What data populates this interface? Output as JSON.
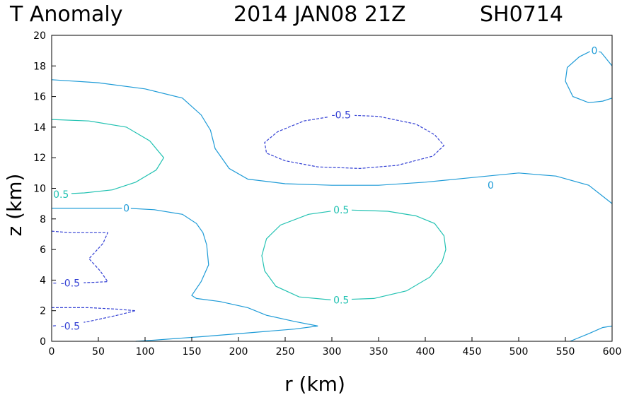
{
  "chart_data": {
    "type": "contour",
    "title": "T Anomaly",
    "subtitle": "2014 JAN08 21Z",
    "storm_id": "SH0714",
    "xlabel": "r (km)",
    "ylabel": "z (km)",
    "xlim": [
      0,
      600
    ],
    "ylim": [
      0,
      20
    ],
    "x_ticks": [
      "0",
      "50",
      "100",
      "150",
      "200",
      "250",
      "300",
      "350",
      "400",
      "450",
      "500",
      "550",
      "600"
    ],
    "y_ticks": [
      "0",
      "2",
      "4",
      "6",
      "8",
      "10",
      "12",
      "14",
      "16",
      "18",
      "20"
    ],
    "colors": {
      "zero": "#1e9bd7",
      "positive": "#22c2b2",
      "negative": "#3340d4"
    },
    "contours": [
      {
        "level": 0,
        "color_key": "zero",
        "dashed": false,
        "points": [
          [
            0,
            17.1
          ],
          [
            50,
            16.9
          ],
          [
            100,
            16.5
          ],
          [
            140,
            15.9
          ],
          [
            160,
            14.8
          ],
          [
            170,
            13.8
          ],
          [
            175,
            12.6
          ],
          [
            190,
            11.3
          ],
          [
            210,
            10.6
          ],
          [
            250,
            10.3
          ],
          [
            300,
            10.2
          ],
          [
            350,
            10.2
          ],
          [
            400,
            10.4
          ],
          [
            450,
            10.7
          ],
          [
            500,
            11.0
          ],
          [
            540,
            10.8
          ],
          [
            575,
            10.2
          ],
          [
            600,
            9.0
          ]
        ]
      },
      {
        "level": 0,
        "color_key": "zero",
        "dashed": false,
        "points": [
          [
            0,
            8.7
          ],
          [
            50,
            8.7
          ],
          [
            80,
            8.7
          ],
          [
            110,
            8.6
          ],
          [
            140,
            8.3
          ],
          [
            155,
            7.7
          ],
          [
            162,
            7.1
          ],
          [
            166,
            6.3
          ],
          [
            168,
            5.0
          ],
          [
            160,
            3.9
          ],
          [
            150,
            3.0
          ],
          [
            155,
            2.8
          ],
          [
            180,
            2.6
          ],
          [
            210,
            2.2
          ],
          [
            230,
            1.7
          ],
          [
            260,
            1.3
          ],
          [
            285,
            1.0
          ],
          [
            260,
            0.8
          ],
          [
            210,
            0.55
          ],
          [
            160,
            0.3
          ],
          [
            110,
            0.08
          ],
          [
            90,
            0.0
          ]
        ]
      },
      {
        "level": 0,
        "color_key": "zero",
        "dashed": false,
        "points": [
          [
            555,
            0.0
          ],
          [
            575,
            0.5
          ],
          [
            590,
            0.9
          ],
          [
            600,
            1.0
          ]
        ]
      },
      {
        "level": 0,
        "color_key": "zero",
        "dashed": false,
        "points": [
          [
            600,
            18.0
          ],
          [
            588,
            18.9
          ],
          [
            578,
            19.0
          ],
          [
            565,
            18.6
          ],
          [
            552,
            17.9
          ],
          [
            550,
            17.0
          ],
          [
            558,
            16.0
          ],
          [
            575,
            15.6
          ],
          [
            590,
            15.7
          ],
          [
            600,
            15.9
          ]
        ]
      },
      {
        "level": 0.5,
        "color_key": "positive",
        "dashed": false,
        "points": [
          [
            0,
            14.5
          ],
          [
            40,
            14.4
          ],
          [
            80,
            14.0
          ],
          [
            105,
            13.1
          ],
          [
            120,
            12.0
          ],
          [
            112,
            11.2
          ],
          [
            90,
            10.4
          ],
          [
            65,
            9.9
          ],
          [
            35,
            9.7
          ],
          [
            0,
            9.6
          ]
        ]
      },
      {
        "level": 0.5,
        "color_key": "positive",
        "dashed": false,
        "points": [
          [
            310,
            8.6
          ],
          [
            360,
            8.5
          ],
          [
            390,
            8.2
          ],
          [
            410,
            7.7
          ],
          [
            420,
            6.9
          ],
          [
            422,
            6.0
          ],
          [
            418,
            5.2
          ],
          [
            405,
            4.2
          ],
          [
            380,
            3.3
          ],
          [
            345,
            2.8
          ],
          [
            300,
            2.7
          ],
          [
            265,
            2.9
          ],
          [
            240,
            3.6
          ],
          [
            228,
            4.6
          ],
          [
            225,
            5.6
          ],
          [
            230,
            6.7
          ],
          [
            245,
            7.6
          ],
          [
            275,
            8.3
          ],
          [
            310,
            8.6
          ]
        ]
      },
      {
        "level": -0.5,
        "color_key": "negative",
        "dashed": true,
        "points": [
          [
            310,
            14.8
          ],
          [
            350,
            14.7
          ],
          [
            390,
            14.2
          ],
          [
            410,
            13.5
          ],
          [
            420,
            12.8
          ],
          [
            408,
            12.1
          ],
          [
            370,
            11.5
          ],
          [
            330,
            11.3
          ],
          [
            285,
            11.4
          ],
          [
            250,
            11.8
          ],
          [
            230,
            12.3
          ],
          [
            228,
            13.0
          ],
          [
            242,
            13.7
          ],
          [
            270,
            14.4
          ],
          [
            310,
            14.8
          ]
        ]
      },
      {
        "level": -0.5,
        "color_key": "negative",
        "dashed": true,
        "points": [
          [
            0,
            7.2
          ],
          [
            20,
            7.1
          ],
          [
            40,
            7.1
          ],
          [
            60,
            7.1
          ],
          [
            55,
            6.4
          ],
          [
            40,
            5.4
          ],
          [
            52,
            4.6
          ],
          [
            60,
            3.9
          ],
          [
            45,
            3.85
          ],
          [
            20,
            3.8
          ],
          [
            0,
            3.8
          ]
        ]
      },
      {
        "level": -0.5,
        "color_key": "negative",
        "dashed": true,
        "points": [
          [
            0,
            2.2
          ],
          [
            40,
            2.2
          ],
          [
            70,
            2.1
          ],
          [
            90,
            2.0
          ],
          [
            70,
            1.7
          ],
          [
            40,
            1.3
          ],
          [
            20,
            1.1
          ],
          [
            0,
            1.0
          ]
        ]
      }
    ],
    "contour_labels": [
      {
        "text": "0",
        "x": 470,
        "y": 10.2,
        "color_key": "zero"
      },
      {
        "text": "0",
        "x": 80,
        "y": 8.7,
        "color_key": "zero"
      },
      {
        "text": "0",
        "x": 581,
        "y": 19.0,
        "color_key": "zero"
      },
      {
        "text": "0.5",
        "x": 10,
        "y": 9.6,
        "color_key": "positive"
      },
      {
        "text": "0.5",
        "x": 310,
        "y": 8.6,
        "color_key": "positive"
      },
      {
        "text": "0.5",
        "x": 310,
        "y": 2.7,
        "color_key": "positive"
      },
      {
        "text": "-0.5",
        "x": 310,
        "y": 14.8,
        "color_key": "negative"
      },
      {
        "text": "-0.5",
        "x": 20,
        "y": 3.8,
        "color_key": "negative"
      },
      {
        "text": "-0.5",
        "x": 20,
        "y": 1.0,
        "color_key": "negative"
      }
    ]
  }
}
